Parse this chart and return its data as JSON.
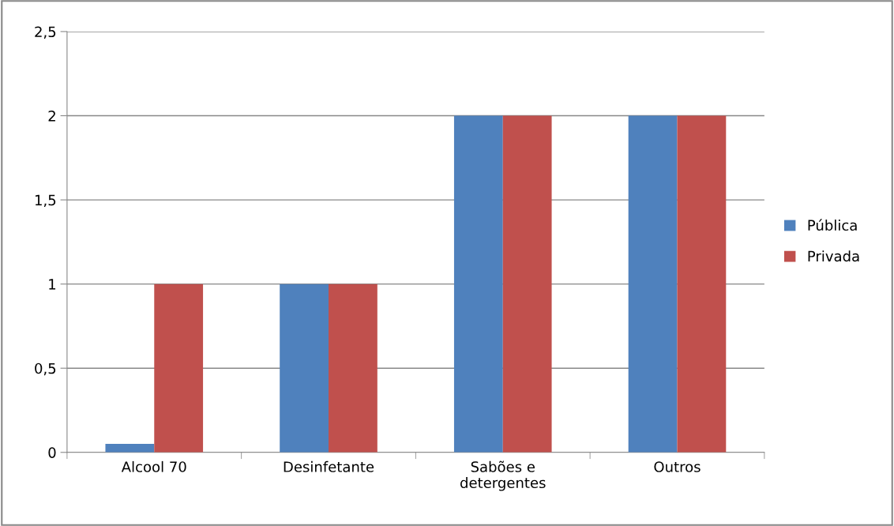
{
  "chart_data": {
    "type": "bar",
    "categories": [
      "Alcool 70",
      "Desinfetante",
      "Sabões e\ndetergentes",
      "Outros"
    ],
    "series": [
      {
        "name": "Pública",
        "color": "#4f81bd",
        "values": [
          0.05,
          1,
          2,
          2
        ]
      },
      {
        "name": "Privada",
        "color": "#c0504d",
        "values": [
          1,
          1,
          2,
          2
        ]
      }
    ],
    "ylim": [
      0,
      2.5
    ],
    "yticks": [
      0,
      {
        "value": 0.5,
        "label": "0,5"
      },
      1,
      {
        "value": 1.5,
        "label": "1,5"
      },
      2,
      {
        "value": 2.5,
        "label": "2,5"
      }
    ],
    "grid": "y",
    "legend": "right"
  }
}
